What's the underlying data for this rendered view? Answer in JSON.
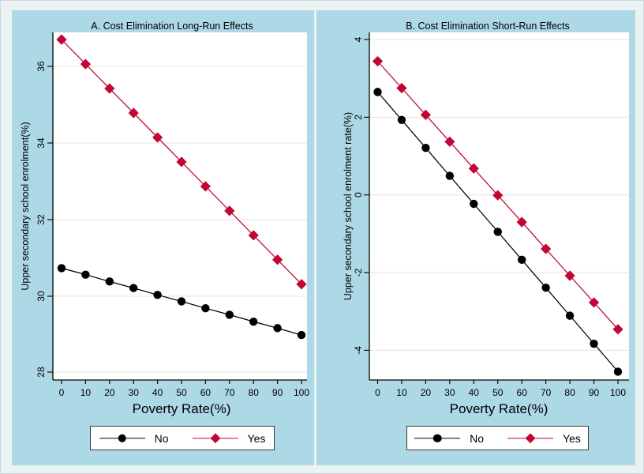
{
  "chart_data": [
    {
      "type": "line",
      "title": "A. Cost Elimination Long-Run Effects",
      "xlabel": "Poverty Rate(%)",
      "ylabel": "Upper secondary school enrolment(%)",
      "x": [
        0,
        10,
        20,
        30,
        40,
        50,
        60,
        70,
        80,
        90,
        100
      ],
      "xticks": [
        0,
        10,
        20,
        30,
        40,
        50,
        60,
        70,
        80,
        90,
        100
      ],
      "yticks": [
        36,
        34,
        32,
        30,
        28
      ],
      "ylim": [
        27.8,
        36.93
      ],
      "xlim": [
        -3.6,
        102.6
      ],
      "grid": true,
      "legend_position": "bottom-center",
      "series": [
        {
          "name": "No",
          "marker": "circle",
          "color": "#000000",
          "values": [
            30.72,
            30.55,
            30.37,
            30.2,
            30.02,
            29.85,
            29.67,
            29.5,
            29.32,
            29.15,
            28.97
          ]
        },
        {
          "name": "Yes",
          "marker": "diamond",
          "color": "#c10534",
          "values": [
            36.7,
            36.06,
            35.42,
            34.78,
            34.14,
            33.5,
            32.86,
            32.22,
            31.58,
            30.94,
            30.3
          ]
        }
      ]
    },
    {
      "type": "line",
      "title": "B. Cost Elimination Short-Run Effects",
      "xlabel": "Poverty Rate(%)",
      "ylabel": "Upper secondary school enrolment rate(%)",
      "x": [
        0,
        10,
        20,
        30,
        40,
        50,
        60,
        70,
        80,
        90,
        100
      ],
      "xticks": [
        0,
        10,
        20,
        30,
        40,
        50,
        60,
        70,
        80,
        90,
        100
      ],
      "yticks": [
        4,
        2,
        0,
        -2,
        -4
      ],
      "ylim": [
        -4.73,
        4.22
      ],
      "xlim": [
        -3.6,
        102.6
      ],
      "grid": true,
      "legend_position": "bottom-center",
      "series": [
        {
          "name": "No",
          "marker": "circle",
          "color": "#000000",
          "values": [
            2.65,
            1.93,
            1.21,
            0.49,
            -0.23,
            -0.95,
            -1.67,
            -2.39,
            -3.11,
            -3.83,
            -4.55
          ]
        },
        {
          "name": "Yes",
          "marker": "diamond",
          "color": "#c10534",
          "values": [
            3.44,
            2.75,
            2.06,
            1.37,
            0.68,
            -0.01,
            -0.7,
            -1.39,
            -2.08,
            -2.77,
            -3.46
          ]
        }
      ]
    }
  ],
  "legend": {
    "items": [
      {
        "label": "No",
        "marker": "circle-marker-icon"
      },
      {
        "label": "Yes",
        "marker": "diamond-marker-icon"
      }
    ]
  },
  "colors": {
    "panel_background": "#add8e6",
    "margin_background": "#eaf2f4",
    "plot_background": "#ffffff",
    "gridline": "#e4e4e4",
    "axis": "#000000",
    "series_no": "#000000",
    "series_yes": "#c10534",
    "legend_border": "#3a3a3a",
    "text": "#000000"
  }
}
